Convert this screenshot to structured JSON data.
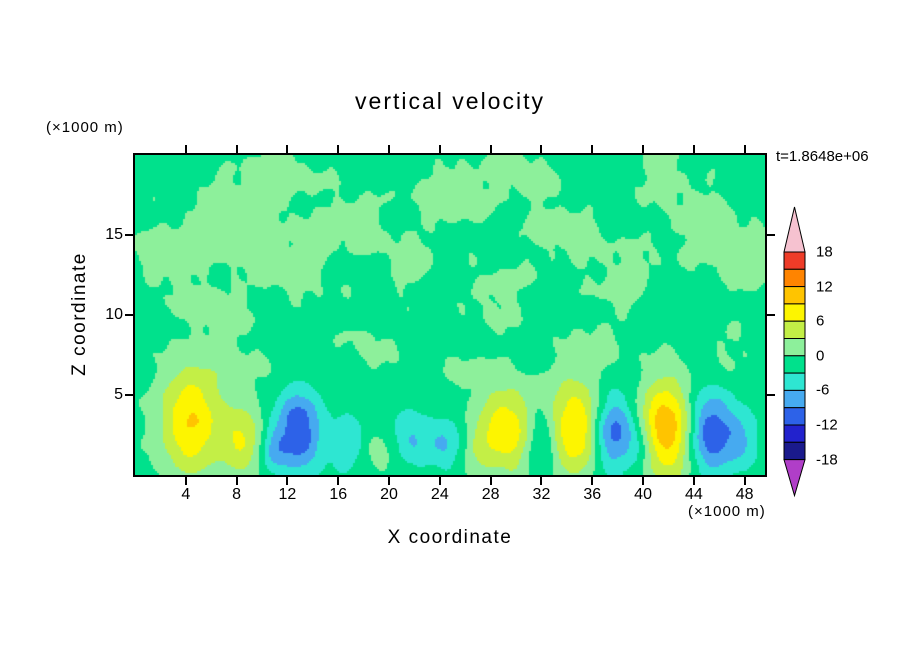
{
  "chart_data": {
    "type": "heatmap",
    "title": "vertical velocity",
    "xlabel": "X coordinate",
    "ylabel": "Z coordinate",
    "x_unit_label": "(×1000 m)",
    "y_unit_label": "(×1000 m)",
    "timestamp": "t=1.8648e+06",
    "xlim": [
      0,
      49.6
    ],
    "zlim": [
      0,
      20
    ],
    "x_ticks": [
      4,
      8,
      12,
      16,
      20,
      24,
      28,
      32,
      36,
      40,
      44,
      48
    ],
    "z_ticks": [
      5,
      10,
      15
    ],
    "grid": false,
    "levels": [
      -18,
      -15,
      -12,
      -9,
      -6,
      -3,
      0,
      3,
      6,
      9,
      12,
      15,
      18
    ],
    "colors": {
      "below": "#b03ec8",
      "bands": [
        "#1a1a8c",
        "#2222cd",
        "#2d62e8",
        "#46aaf0",
        "#2ee6d2",
        "#00e18c",
        "#8df09b",
        "#c3ef46",
        "#fdf500",
        "#ffc400",
        "#ff8400",
        "#ee3c28"
      ],
      "above": "#f6c2d0",
      "frame": "#000000"
    },
    "colorbar": {
      "position": "right",
      "labels": [
        "18",
        "12",
        "6",
        "0",
        "-6",
        "-12",
        "-18"
      ]
    },
    "background_value": -0.9,
    "blobs": [
      {
        "x": 4.3,
        "z": 3.0,
        "sx": 1.6,
        "sz": 2.0,
        "a": 10
      },
      {
        "x": 4.8,
        "z": 5.9,
        "sx": 1.7,
        "sz": 1.2,
        "a": 3
      },
      {
        "x": 8.3,
        "z": 2.2,
        "sx": 1.2,
        "sz": 1.6,
        "a": 7
      },
      {
        "x": 19.5,
        "z": 1.4,
        "sx": 1.0,
        "sz": 1.0,
        "a": 2.6
      },
      {
        "x": 27.0,
        "z": 1.5,
        "sx": 0.9,
        "sz": 1.0,
        "a": 2.4
      },
      {
        "x": 29.3,
        "z": 2.8,
        "sx": 1.6,
        "sz": 1.9,
        "a": 9.5
      },
      {
        "x": 34.7,
        "z": 3.0,
        "sx": 1.5,
        "sz": 2.1,
        "a": 10.5
      },
      {
        "x": 41.9,
        "z": 2.9,
        "sx": 1.5,
        "sz": 2.1,
        "a": 13
      },
      {
        "x": 10.8,
        "z": 1.6,
        "sx": 0.7,
        "sz": 1.0,
        "a": -4.5
      },
      {
        "x": 12.9,
        "z": 2.7,
        "sx": 1.3,
        "sz": 1.8,
        "a": -11
      },
      {
        "x": 16.8,
        "z": 2.0,
        "sx": 1.0,
        "sz": 1.3,
        "a": -4.5
      },
      {
        "x": 21.8,
        "z": 2.2,
        "sx": 1.2,
        "sz": 1.4,
        "a": -5
      },
      {
        "x": 24.5,
        "z": 2.0,
        "sx": 1.0,
        "sz": 1.3,
        "a": -4.5
      },
      {
        "x": 31.9,
        "z": 2.2,
        "sx": 0.9,
        "sz": 1.4,
        "a": -6
      },
      {
        "x": 37.6,
        "z": 2.7,
        "sx": 1.2,
        "sz": 1.7,
        "a": -10
      },
      {
        "x": 39.8,
        "z": 1.8,
        "sx": 0.8,
        "sz": 1.1,
        "a": -4
      },
      {
        "x": 45.2,
        "z": 2.7,
        "sx": 1.3,
        "sz": 1.8,
        "a": -11
      },
      {
        "x": 47.8,
        "z": 2.2,
        "sx": 1.0,
        "sz": 1.3,
        "a": -5
      },
      {
        "x": 2.5,
        "z": 13.5,
        "sx": 1.8,
        "sz": 1.6,
        "a": 1.7
      },
      {
        "x": 7.5,
        "z": 16.2,
        "sx": 2.6,
        "sz": 1.8,
        "a": 1.9
      },
      {
        "x": 6.0,
        "z": 10.2,
        "sx": 2.0,
        "sz": 1.5,
        "a": 1.6
      },
      {
        "x": 12.5,
        "z": 13.0,
        "sx": 2.4,
        "sz": 1.8,
        "a": 1.7
      },
      {
        "x": 11.5,
        "z": 18.6,
        "sx": 2.2,
        "sz": 1.2,
        "a": 1.6
      },
      {
        "x": 17.0,
        "z": 16.0,
        "sx": 1.8,
        "sz": 1.4,
        "a": 1.6
      },
      {
        "x": 21.5,
        "z": 13.3,
        "sx": 1.8,
        "sz": 1.4,
        "a": 1.5
      },
      {
        "x": 25.0,
        "z": 17.6,
        "sx": 2.4,
        "sz": 1.5,
        "a": 1.8
      },
      {
        "x": 28.5,
        "z": 11.2,
        "sx": 1.9,
        "sz": 1.5,
        "a": 1.5
      },
      {
        "x": 30.5,
        "z": 18.8,
        "sx": 1.8,
        "sz": 1.1,
        "a": 1.6
      },
      {
        "x": 33.5,
        "z": 15.3,
        "sx": 2.1,
        "sz": 1.6,
        "a": 1.7
      },
      {
        "x": 38.5,
        "z": 12.4,
        "sx": 2.1,
        "sz": 1.6,
        "a": 1.6
      },
      {
        "x": 41.0,
        "z": 18.9,
        "sx": 1.7,
        "sz": 1.1,
        "a": 1.5
      },
      {
        "x": 44.5,
        "z": 16.0,
        "sx": 2.3,
        "sz": 1.7,
        "a": 1.7
      },
      {
        "x": 48.5,
        "z": 13.2,
        "sx": 1.9,
        "sz": 1.5,
        "a": 1.6
      },
      {
        "x": 18.5,
        "z": 8.0,
        "sx": 1.6,
        "sz": 1.2,
        "a": 1.3
      },
      {
        "x": 9.0,
        "z": 7.0,
        "sx": 1.5,
        "sz": 1.2,
        "a": 1.3
      },
      {
        "x": 26.0,
        "z": 6.5,
        "sx": 1.5,
        "sz": 1.1,
        "a": 1.3
      },
      {
        "x": 47.0,
        "z": 7.5,
        "sx": 1.6,
        "sz": 1.2,
        "a": 1.3
      },
      {
        "x": 36.5,
        "z": 8.2,
        "sx": 1.5,
        "sz": 1.2,
        "a": 1.2
      }
    ]
  }
}
